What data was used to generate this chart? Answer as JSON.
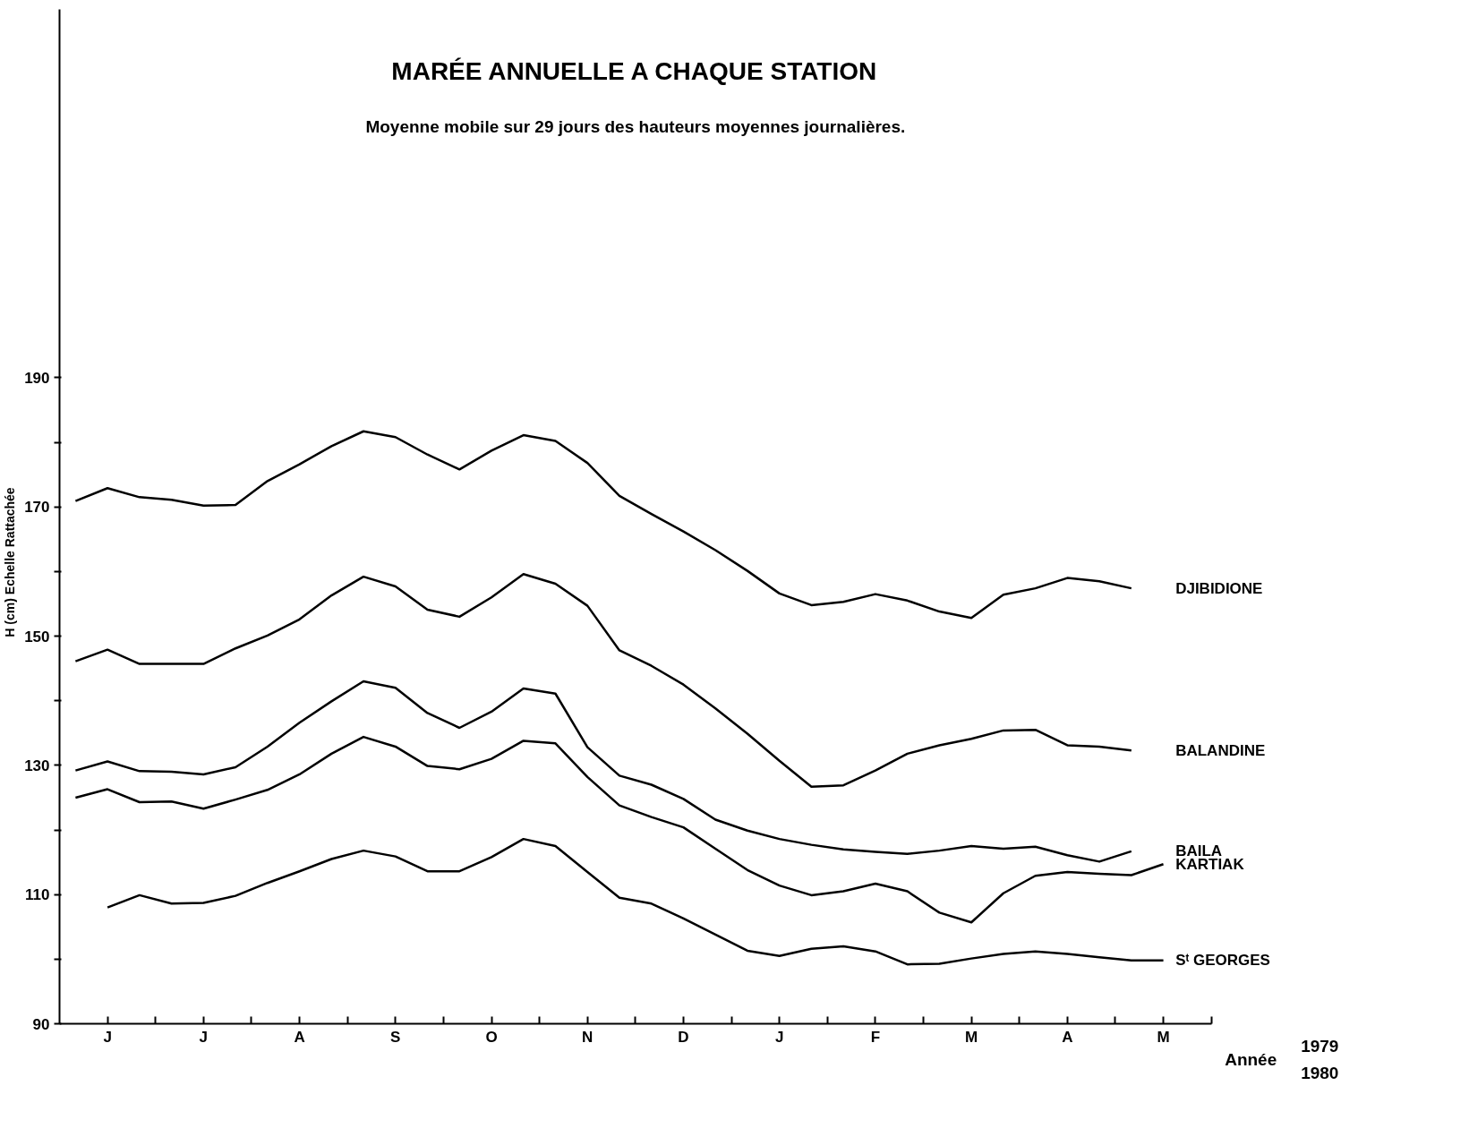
{
  "chart_data": {
    "type": "line",
    "title": "MARÉE ANNUELLE A CHAQUE STATION",
    "subtitle": "Moyenne mobile sur 29 jours des hauteurs moyennes journalières.",
    "ylabel": "H (cm) Echelle Rattachée",
    "xlabel": "Année",
    "annotations": [
      "1979",
      "1980"
    ],
    "categories": [
      null,
      "J",
      null,
      null,
      "J",
      null,
      null,
      "A",
      null,
      null,
      "S",
      null,
      null,
      "O",
      null,
      null,
      "N",
      null,
      null,
      "D",
      null,
      null,
      "J",
      null,
      null,
      "F",
      null,
      null,
      "M",
      null,
      null,
      "A",
      null,
      null,
      "M",
      null
    ],
    "ylim": [
      90,
      247
    ],
    "yticks": [
      90,
      {
        "value": 100,
        "label": null
      },
      110,
      {
        "value": 120,
        "label": null
      },
      130,
      {
        "value": 140,
        "label": null
      },
      150,
      {
        "value": 160,
        "label": null
      },
      170,
      {
        "value": 180,
        "label": null
      },
      190
    ],
    "grid": false,
    "legend": false,
    "marker": "none",
    "line_style": "solid",
    "series": [
      {
        "name": "DJIBIDIONE",
        "color": "#000000",
        "values": [
          170.9,
          172.9,
          171.5,
          171.1,
          170.2,
          170.3,
          174.0,
          176.6,
          179.4,
          181.7,
          180.8,
          178.1,
          175.8,
          178.7,
          181.1,
          180.2,
          176.8,
          171.7,
          168.9,
          166.2,
          163.3,
          160.1,
          156.6,
          154.8,
          155.3,
          156.5,
          155.5,
          153.8,
          152.8,
          156.4,
          157.4,
          159.0,
          158.5,
          157.4,
          null,
          null
        ]
      },
      {
        "name": "BALANDINE",
        "color": "#000000",
        "values": [
          146.1,
          147.9,
          145.7,
          145.7,
          145.7,
          148.1,
          150.1,
          152.6,
          156.3,
          159.2,
          157.7,
          154.1,
          153.0,
          156.0,
          159.6,
          158.1,
          154.7,
          147.8,
          145.4,
          142.5,
          138.8,
          134.9,
          130.7,
          126.7,
          126.9,
          129.2,
          131.8,
          133.1,
          134.1,
          135.4,
          135.5,
          133.1,
          132.9,
          132.3,
          null,
          null
        ]
      },
      {
        "name": "BAILA",
        "color": "#000000",
        "values": [
          129.2,
          130.6,
          129.1,
          129.0,
          128.6,
          129.7,
          132.9,
          136.6,
          139.9,
          143.0,
          142.0,
          138.1,
          135.8,
          138.3,
          141.9,
          141.1,
          132.8,
          128.4,
          127.0,
          124.8,
          121.6,
          119.9,
          118.6,
          117.7,
          117.0,
          116.6,
          116.3,
          116.8,
          117.5,
          117.1,
          117.4,
          116.1,
          115.1,
          116.7,
          null,
          null
        ]
      },
      {
        "name": "KARTIAK",
        "color": "#000000",
        "values": [
          125.0,
          126.3,
          124.3,
          124.4,
          123.3,
          124.7,
          126.2,
          128.6,
          131.8,
          134.4,
          132.9,
          129.9,
          129.4,
          131.0,
          133.8,
          133.4,
          128.2,
          123.8,
          122.0,
          120.4,
          117.1,
          113.8,
          111.4,
          109.9,
          110.5,
          111.7,
          110.5,
          107.2,
          105.7,
          110.2,
          112.9,
          113.5,
          113.2,
          113.0,
          114.7,
          null
        ]
      },
      {
        "name": "Sᵗ GEORGES",
        "color": "#000000",
        "values": [
          null,
          108.0,
          109.9,
          108.6,
          108.7,
          109.8,
          111.8,
          113.6,
          115.5,
          116.8,
          115.9,
          113.6,
          113.6,
          115.8,
          118.6,
          117.5,
          113.5,
          109.5,
          108.6,
          106.3,
          103.8,
          101.3,
          100.5,
          101.6,
          102.0,
          101.2,
          99.2,
          99.3,
          100.1,
          100.8,
          101.2,
          100.8,
          100.3,
          99.8,
          99.8,
          null
        ]
      }
    ]
  }
}
